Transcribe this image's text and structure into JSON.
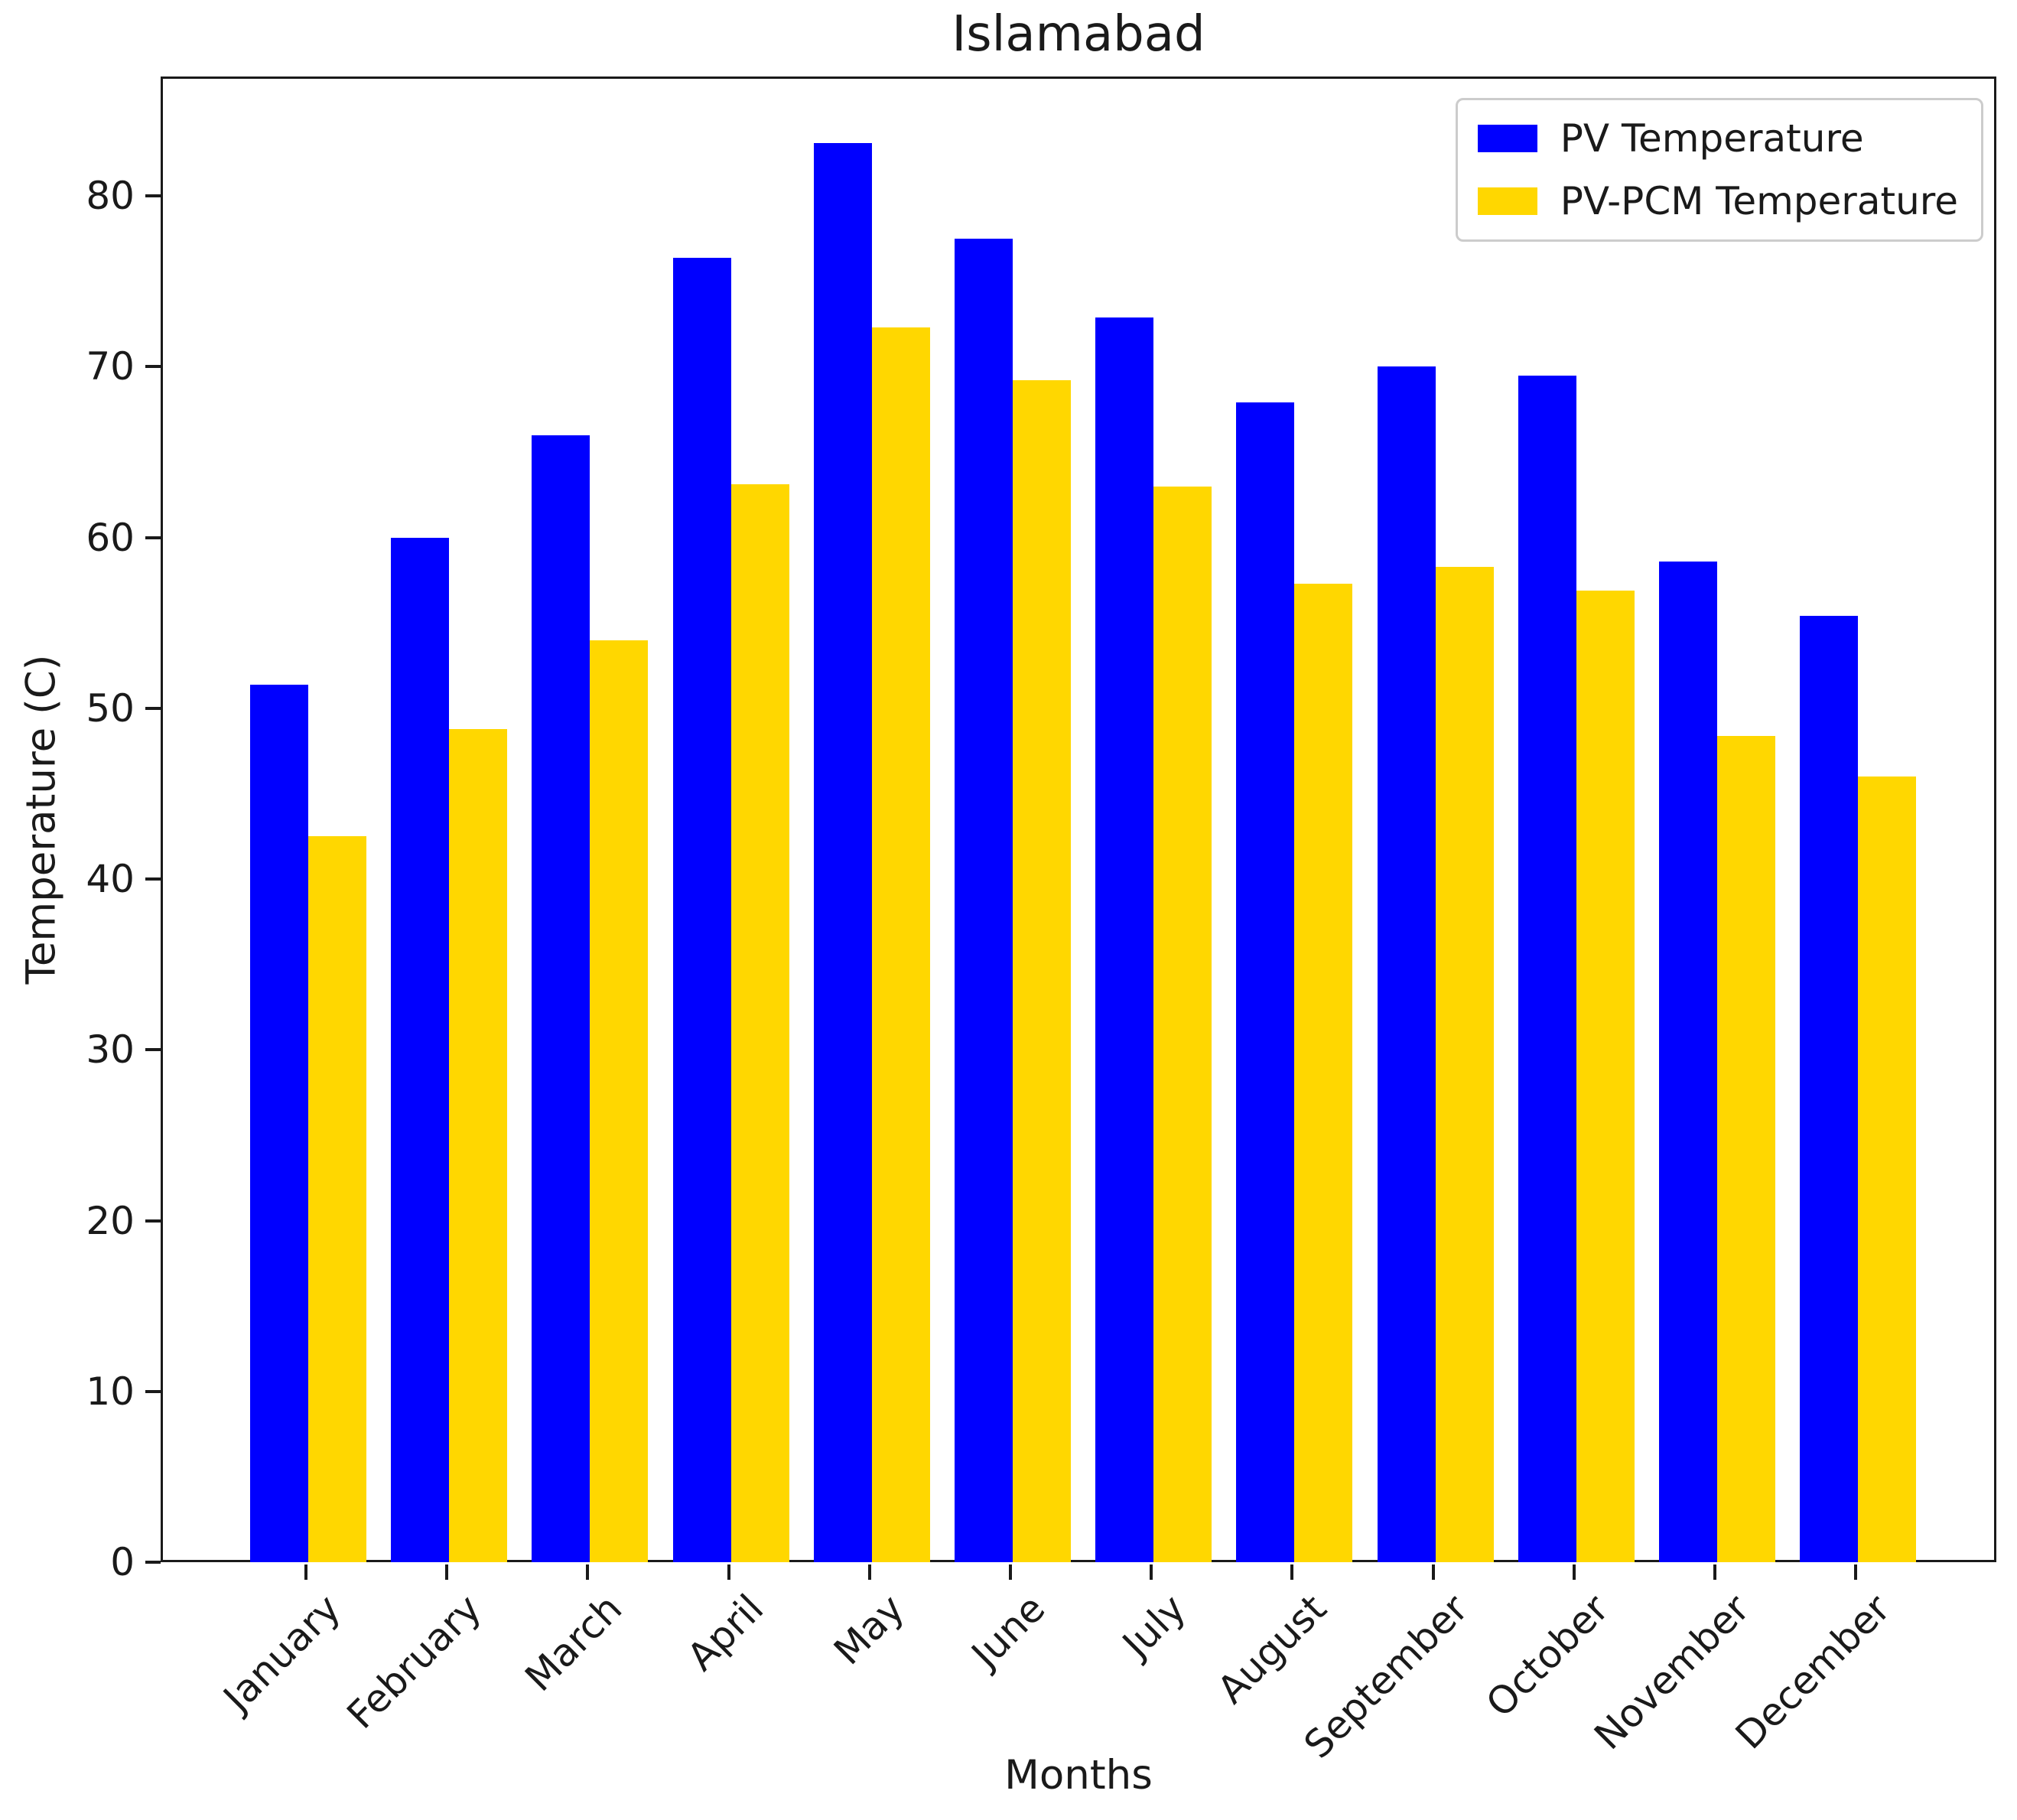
{
  "chart_data": {
    "type": "bar",
    "title": "Islamabad",
    "xlabel": "Months",
    "ylabel": "Temperature (C)",
    "ylim": [
      0,
      87
    ],
    "yticks": [
      0,
      10,
      20,
      30,
      40,
      50,
      60,
      70,
      80
    ],
    "grid": false,
    "legend_position": "upper right",
    "categories": [
      "January",
      "February",
      "March",
      "April",
      "May",
      "June",
      "July",
      "August",
      "September",
      "October",
      "November",
      "December"
    ],
    "series": [
      {
        "name": "PV Temperature",
        "color": "#0000FF",
        "values": [
          51.4,
          60.0,
          66.0,
          76.4,
          83.1,
          77.5,
          72.9,
          67.9,
          70.0,
          69.5,
          58.6,
          55.4
        ]
      },
      {
        "name": "PV-PCM Temperature",
        "color": "#FFD700",
        "values": [
          42.5,
          48.8,
          54.0,
          63.1,
          72.3,
          69.2,
          63.0,
          57.3,
          58.3,
          56.9,
          48.4,
          46.0
        ]
      }
    ]
  }
}
